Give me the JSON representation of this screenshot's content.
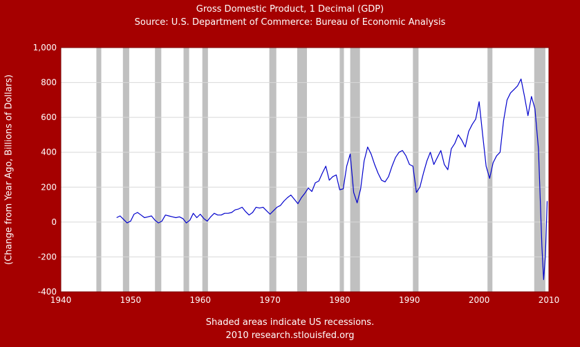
{
  "chart_data": {
    "type": "line",
    "title": "Gross Domestic Product, 1 Decimal (GDP)",
    "subtitle": "Source: U.S. Department of Commerce: Bureau of Economic Analysis",
    "xlabel": "",
    "ylabel": "(Change from Year Ago, Billions of Dollars)",
    "footnote": "Shaded areas indicate US recessions.",
    "credit": "2010 research.stlouisfed.org",
    "xlim": [
      1940,
      2010
    ],
    "ylim": [
      -400,
      1000
    ],
    "x_ticks": [
      {
        "value": 1940,
        "label": "1940"
      },
      {
        "value": 1950,
        "label": "1950"
      },
      {
        "value": 1960,
        "label": "1960"
      },
      {
        "value": 1970,
        "label": "1970"
      },
      {
        "value": 1980,
        "label": "1980"
      },
      {
        "value": 1990,
        "label": "1990"
      },
      {
        "value": 2000,
        "label": "2000"
      },
      {
        "value": 2010,
        "label": "2010"
      }
    ],
    "y_ticks": [
      {
        "value": -400,
        "label": "-400"
      },
      {
        "value": -200,
        "label": "-200"
      },
      {
        "value": 0,
        "label": "0"
      },
      {
        "value": 200,
        "label": "200"
      },
      {
        "value": 400,
        "label": "400"
      },
      {
        "value": 600,
        "label": "600"
      },
      {
        "value": 800,
        "label": "800"
      },
      {
        "value": 1000,
        "label": "1,000"
      }
    ],
    "grid": true,
    "recessions": [
      [
        1945.1,
        1945.8
      ],
      [
        1948.9,
        1949.8
      ],
      [
        1953.5,
        1954.4
      ],
      [
        1957.6,
        1958.4
      ],
      [
        1960.3,
        1961.1
      ],
      [
        1969.9,
        1970.9
      ],
      [
        1973.9,
        1975.3
      ],
      [
        1980.0,
        1980.6
      ],
      [
        1981.5,
        1982.9
      ],
      [
        1990.5,
        1991.3
      ],
      [
        2001.2,
        2001.9
      ],
      [
        2007.9,
        2009.5
      ]
    ],
    "series": [
      {
        "color": "#0000cc",
        "x": [
          1948.0,
          1948.5,
          1949.0,
          1949.5,
          1950.0,
          1950.5,
          1951.0,
          1951.5,
          1952.0,
          1952.5,
          1953.0,
          1953.5,
          1954.0,
          1954.5,
          1955.0,
          1955.5,
          1956.0,
          1956.5,
          1957.0,
          1957.5,
          1958.0,
          1958.5,
          1959.0,
          1959.5,
          1960.0,
          1960.5,
          1961.0,
          1961.5,
          1962.0,
          1962.5,
          1963.0,
          1963.5,
          1964.0,
          1964.5,
          1965.0,
          1965.5,
          1966.0,
          1966.5,
          1967.0,
          1967.5,
          1968.0,
          1968.5,
          1969.0,
          1969.5,
          1970.0,
          1970.5,
          1971.0,
          1971.5,
          1972.0,
          1972.5,
          1973.0,
          1973.5,
          1974.0,
          1974.5,
          1975.0,
          1975.5,
          1976.0,
          1976.5,
          1977.0,
          1977.5,
          1978.0,
          1978.5,
          1979.0,
          1979.5,
          1980.0,
          1980.5,
          1981.0,
          1981.5,
          1982.0,
          1982.5,
          1983.0,
          1983.5,
          1984.0,
          1984.5,
          1985.0,
          1985.5,
          1986.0,
          1986.5,
          1987.0,
          1987.5,
          1988.0,
          1988.5,
          1989.0,
          1989.5,
          1990.0,
          1990.5,
          1991.0,
          1991.5,
          1992.0,
          1992.5,
          1993.0,
          1993.5,
          1994.0,
          1994.5,
          1995.0,
          1995.5,
          1996.0,
          1996.5,
          1997.0,
          1997.5,
          1998.0,
          1998.5,
          1999.0,
          1999.5,
          2000.0,
          2000.5,
          2001.0,
          2001.5,
          2002.0,
          2002.5,
          2003.0,
          2003.5,
          2004.0,
          2004.5,
          2005.0,
          2005.5,
          2006.0,
          2006.5,
          2007.0,
          2007.5,
          2008.0,
          2008.5,
          2009.0,
          2009.25,
          2009.5,
          2009.75
        ],
        "y": [
          25,
          35,
          15,
          -5,
          5,
          45,
          55,
          40,
          25,
          30,
          35,
          10,
          -5,
          5,
          40,
          35,
          30,
          25,
          30,
          20,
          -5,
          10,
          50,
          25,
          45,
          20,
          5,
          30,
          50,
          40,
          40,
          50,
          50,
          55,
          70,
          75,
          85,
          60,
          40,
          55,
          85,
          80,
          85,
          65,
          45,
          65,
          85,
          95,
          120,
          140,
          155,
          130,
          105,
          140,
          165,
          195,
          175,
          225,
          235,
          280,
          320,
          240,
          260,
          270,
          185,
          190,
          320,
          390,
          170,
          110,
          190,
          350,
          430,
          390,
          330,
          280,
          240,
          230,
          260,
          320,
          370,
          400,
          410,
          380,
          330,
          320,
          170,
          200,
          280,
          350,
          400,
          330,
          370,
          410,
          330,
          300,
          420,
          450,
          500,
          470,
          430,
          520,
          560,
          590,
          690,
          500,
          320,
          250,
          340,
          380,
          400,
          580,
          700,
          740,
          760,
          780,
          820,
          720,
          610,
          720,
          650,
          420,
          -140,
          -330,
          -190,
          120
        ]
      }
    ]
  }
}
